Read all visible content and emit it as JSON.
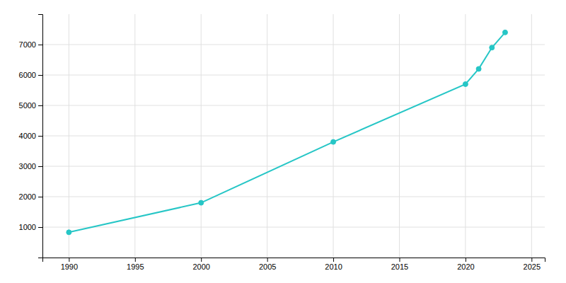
{
  "chart_data": {
    "type": "line",
    "x": [
      1990,
      2000,
      2010,
      2020,
      2021,
      2022,
      2023
    ],
    "values": [
      830,
      1800,
      3800,
      5700,
      6200,
      6900,
      7400
    ],
    "color": "#26C6C6",
    "marker": "circle",
    "xlim": [
      1988,
      2026
    ],
    "ylim": [
      0,
      8000
    ],
    "xticks": [
      1990,
      1995,
      2000,
      2005,
      2010,
      2015,
      2020,
      2025
    ],
    "yticks": [
      1000,
      2000,
      3000,
      4000,
      5000,
      6000,
      7000
    ],
    "grid": true
  }
}
